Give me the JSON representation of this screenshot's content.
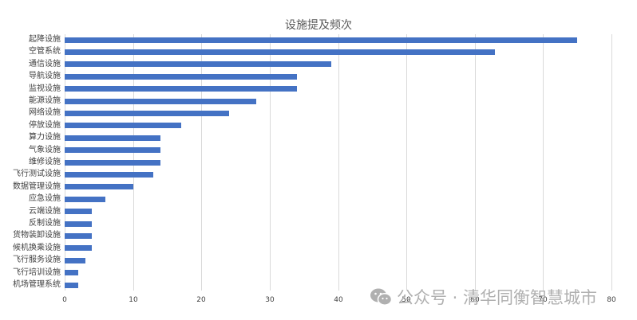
{
  "chart_data": {
    "type": "bar",
    "orientation": "horizontal",
    "title": "设施提及频次",
    "categories": [
      "起降设施",
      "空管系统",
      "通信设施",
      "导航设施",
      "监视设施",
      "能源设施",
      "网络设施",
      "停放设施",
      "算力设施",
      "气象设施",
      "维修设施",
      "飞行测试设施",
      "数据管理设施",
      "应急设施",
      "云端设施",
      "反制设施",
      "货物装卸设施",
      "候机换乘设施",
      "飞行服务设施",
      "飞行培训设施",
      "机场管理系统"
    ],
    "values": [
      75,
      63,
      39,
      34,
      34,
      28,
      24,
      17,
      14,
      14,
      14,
      13,
      10,
      6,
      4,
      4,
      4,
      4,
      3,
      2,
      2
    ],
    "xlabel": "",
    "ylabel": "",
    "xlim": [
      0,
      80
    ],
    "xticks": [
      "0",
      "10",
      "20",
      "30",
      "40",
      "50",
      "60",
      "70",
      "80"
    ],
    "grid": true,
    "legend": null,
    "bar_color": "#4472c4"
  },
  "watermark": {
    "icon": "wechat-icon",
    "text": "公众号 · 清华同衡智慧城市"
  }
}
